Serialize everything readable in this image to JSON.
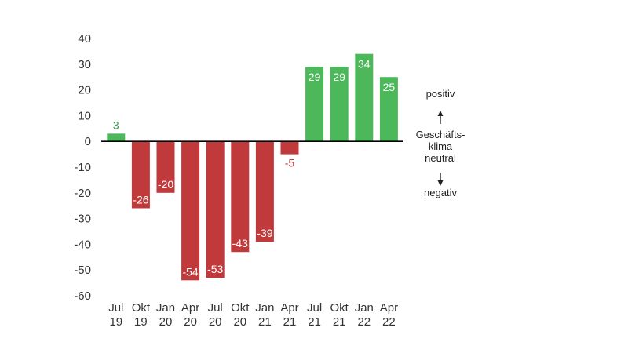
{
  "chart_data": {
    "type": "bar",
    "categories": [
      [
        "Jul",
        "19"
      ],
      [
        "Okt",
        "19"
      ],
      [
        "Jan",
        "20"
      ],
      [
        "Apr",
        "20"
      ],
      [
        "Jul",
        "20"
      ],
      [
        "Okt",
        "20"
      ],
      [
        "Jan",
        "21"
      ],
      [
        "Apr",
        "21"
      ],
      [
        "Jul",
        "21"
      ],
      [
        "Okt",
        "21"
      ],
      [
        "Jan",
        "22"
      ],
      [
        "Apr",
        "22"
      ]
    ],
    "values": [
      3,
      -26,
      -20,
      -54,
      -53,
      -43,
      -39,
      -5,
      29,
      29,
      34,
      25
    ],
    "ylim": [
      -60,
      40
    ],
    "yticks": [
      40,
      30,
      20,
      10,
      0,
      -10,
      -20,
      -30,
      -40,
      -50,
      -60
    ],
    "grid": false,
    "colors": {
      "positive": "#4cb85a",
      "negative": "#c0393b",
      "positive_label": "#3e9a4c",
      "negative_label": "#c0393b",
      "inside_label": "#ffffff",
      "axis": "#000000"
    },
    "legend": {
      "positive": "positiv",
      "center": [
        "Geschäfts-",
        "klima",
        "neutral"
      ],
      "negative": "negativ"
    }
  }
}
